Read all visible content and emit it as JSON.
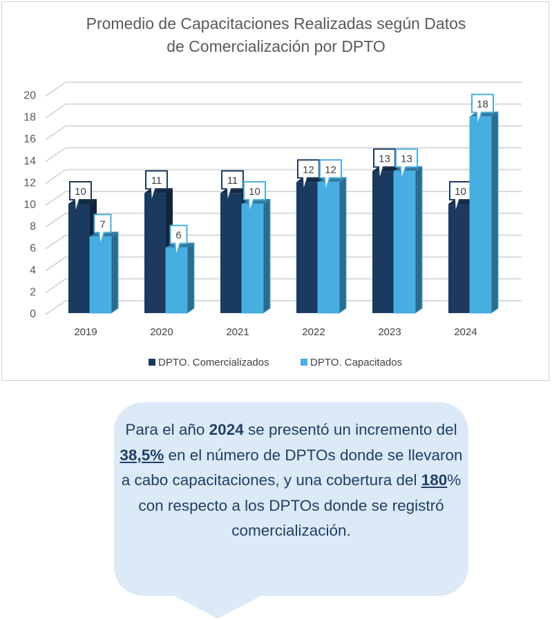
{
  "chart_data": {
    "type": "bar",
    "title": [
      "Promedio de Capacitaciones Realizadas según Datos",
      "de Comercialización por DPTO"
    ],
    "categories": [
      "2019",
      "2020",
      "2021",
      "2022",
      "2023",
      "2024"
    ],
    "series": [
      {
        "name": "DPTO. Comercializados",
        "values": [
          10,
          11,
          11,
          12,
          13,
          10
        ],
        "color": "#1b3a5f"
      },
      {
        "name": "DPTO. Capacitados",
        "values": [
          7,
          6,
          10,
          12,
          13,
          18
        ],
        "color": "#47aee0"
      }
    ],
    "ylim": [
      0,
      20
    ],
    "yticks": [
      0,
      2,
      4,
      6,
      8,
      10,
      12,
      14,
      16,
      18,
      20
    ],
    "grid": true,
    "legend": "bottom",
    "style": "3d-clustered-column"
  },
  "callout": {
    "p1": "Para el año ",
    "b1": "2024",
    "p2": " se presentó un incremento del ",
    "u1": "38,5%",
    "p3": " en el número de DPTOs donde se llevaron a cabo capacitaciones, y una cobertura del ",
    "u2": "180",
    "p4": "% con respecto a los DPTOs donde se registró comercialización."
  }
}
